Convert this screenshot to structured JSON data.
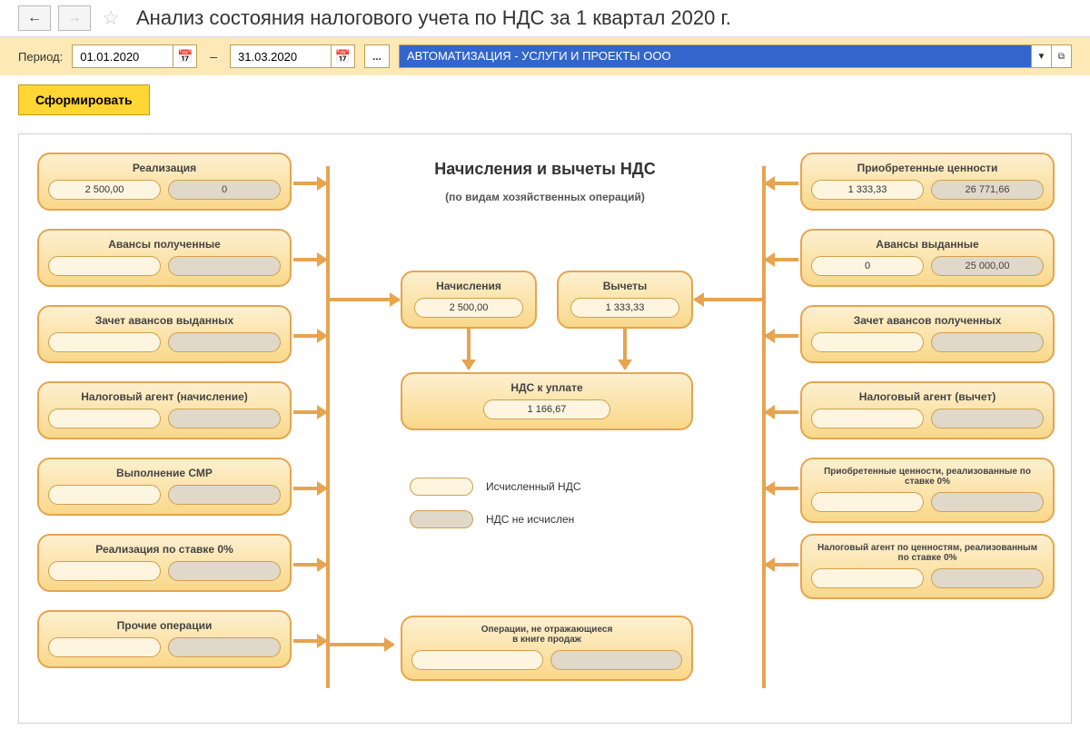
{
  "header": {
    "title": "Анализ состояния налогового учета по НДС за 1 квартал 2020 г."
  },
  "toolbar": {
    "period_label": "Период:",
    "date_from": "01.01.2020",
    "date_to": "31.03.2020",
    "dash": "–",
    "ellipsis": "...",
    "org_value": "АВТОМАТИЗАЦИЯ - УСЛУГИ И ПРОЕКТЫ ООО"
  },
  "actions": {
    "generate": "Сформировать"
  },
  "report": {
    "title": "Начисления и вычеты НДС",
    "subtitle": "(по видам хозяйственных операций)",
    "legend_calc": "Исчисленный НДС",
    "legend_noncalc": "НДС не исчислен",
    "center": {
      "accruals": {
        "title": "Начисления",
        "value": "2 500,00"
      },
      "deductions": {
        "title": "Вычеты",
        "value": "1 333,33"
      },
      "payable": {
        "title": "НДС к уплате",
        "value": "1 166,67"
      },
      "excluded": {
        "title": "Операции, не отражающиеся\nв книге продаж"
      }
    },
    "left": [
      {
        "title": "Реализация",
        "calc": "2 500,00",
        "noncalc": "0"
      },
      {
        "title": "Авансы полученные",
        "calc": "",
        "noncalc": ""
      },
      {
        "title": "Зачет авансов выданных",
        "calc": "",
        "noncalc": ""
      },
      {
        "title": "Налоговый агент (начисление)",
        "calc": "",
        "noncalc": ""
      },
      {
        "title": "Выполнение СМР",
        "calc": "",
        "noncalc": ""
      },
      {
        "title": "Реализация по ставке 0%",
        "calc": "",
        "noncalc": ""
      },
      {
        "title": "Прочие операции",
        "calc": "",
        "noncalc": ""
      }
    ],
    "right": [
      {
        "title": "Приобретенные ценности",
        "calc": "1 333,33",
        "noncalc": "26 771,66"
      },
      {
        "title": "Авансы выданные",
        "calc": "0",
        "noncalc": "25 000,00"
      },
      {
        "title": "Зачет авансов полученных",
        "calc": "",
        "noncalc": ""
      },
      {
        "title": "Налоговый агент (вычет)",
        "calc": "",
        "noncalc": ""
      },
      {
        "title": "Приобретенные ценности, реализованные по ставке 0%",
        "calc": "",
        "noncalc": "",
        "small": true
      },
      {
        "title": "Налоговый агент по ценностям, реализованным по ставке 0%",
        "calc": "",
        "noncalc": "",
        "small": true
      }
    ]
  },
  "style": {
    "node_border": "#e6a450",
    "node_bg_top": "#fdf0d0",
    "node_bg_bottom": "#f9d88a",
    "pill_calc_bg": "#fdf5e0",
    "pill_noncalc_bg": "#e0d8c8",
    "toolbar_bg": "#fce9b6",
    "primary_btn_bg": "#ffd633",
    "org_highlight_bg": "#3366cc"
  }
}
